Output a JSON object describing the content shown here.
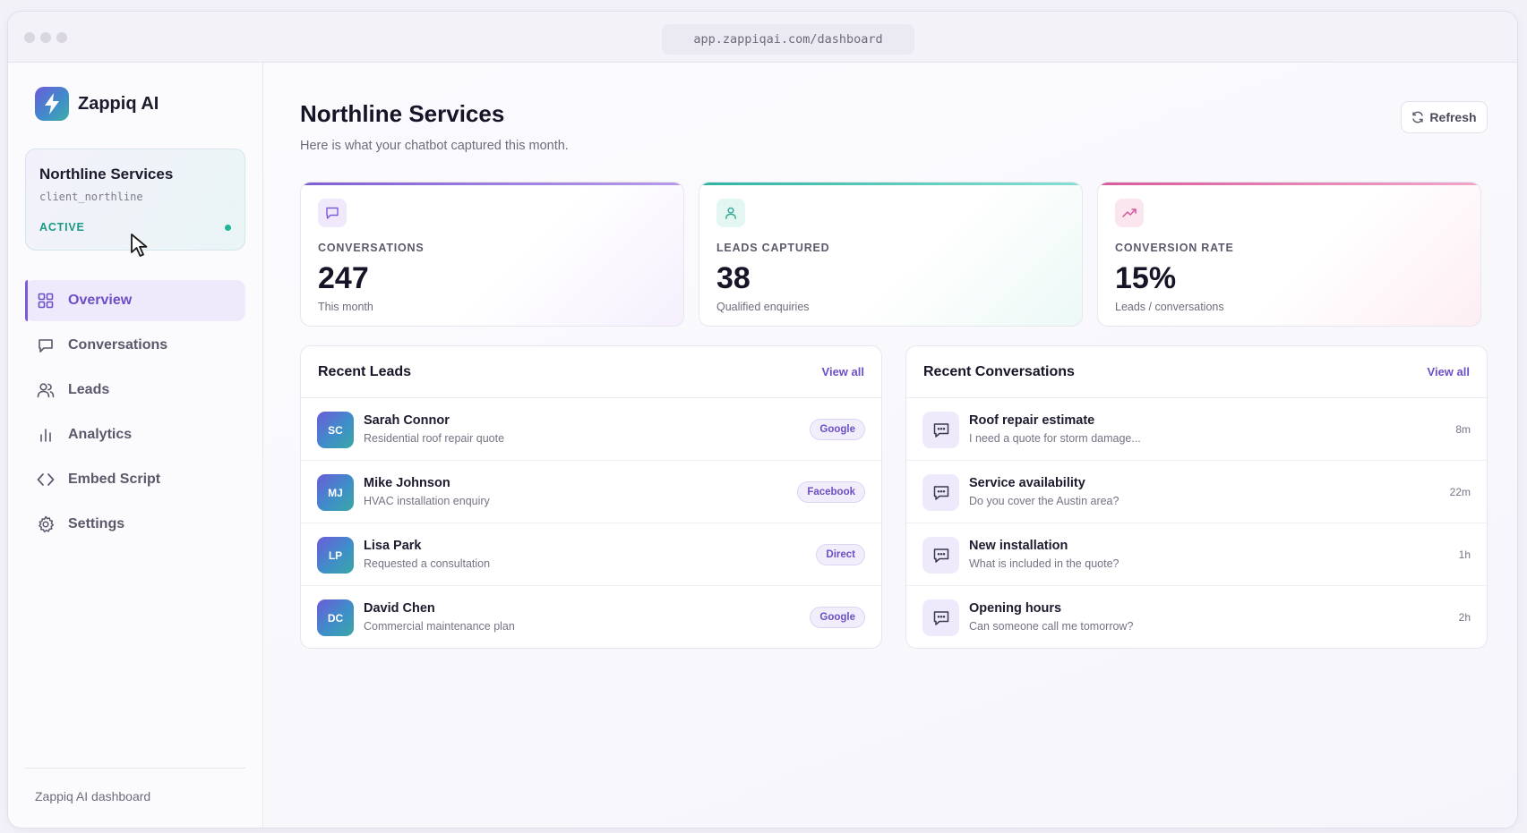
{
  "browser": {
    "url": "app.zappiqai.com/dashboard"
  },
  "sidebar": {
    "brand": "Zappiq AI",
    "client": {
      "name": "Northline Services",
      "id": "client_northline",
      "status": "ACTIVE"
    },
    "nav": [
      {
        "label": "Overview",
        "icon": "grid-icon",
        "active": true
      },
      {
        "label": "Conversations",
        "icon": "chat-bubble-icon",
        "active": false
      },
      {
        "label": "Leads",
        "icon": "users-icon",
        "active": false
      },
      {
        "label": "Analytics",
        "icon": "bar-chart-icon",
        "active": false
      },
      {
        "label": "Embed Script",
        "icon": "code-icon",
        "active": false
      },
      {
        "label": "Settings",
        "icon": "gear-icon",
        "active": false
      }
    ],
    "footer": "Zappiq AI dashboard"
  },
  "header": {
    "title": "Northline Services",
    "subtitle": "Here is what your chatbot captured this month.",
    "refresh_label": "Refresh"
  },
  "stats": [
    {
      "label": "CONVERSATIONS",
      "value": "247",
      "sub": "This month",
      "icon": "chat-bubble-icon",
      "accent": "#8b6ad9"
    },
    {
      "label": "LEADS CAPTURED",
      "value": "38",
      "sub": "Qualified enquiries",
      "icon": "user-icon",
      "accent": "#3cc2b0"
    },
    {
      "label": "CONVERSION RATE",
      "value": "15%",
      "sub": "Leads / conversations",
      "icon": "trending-up-icon",
      "accent": "#e06aa8"
    }
  ],
  "recent_leads": {
    "title": "Recent Leads",
    "link": "View all",
    "items": [
      {
        "initials": "SC",
        "name": "Sarah Connor",
        "desc": "Residential roof repair quote",
        "source": "Google"
      },
      {
        "initials": "MJ",
        "name": "Mike Johnson",
        "desc": "HVAC installation enquiry",
        "source": "Facebook"
      },
      {
        "initials": "LP",
        "name": "Lisa Park",
        "desc": "Requested a consultation",
        "source": "Direct"
      },
      {
        "initials": "DC",
        "name": "David Chen",
        "desc": "Commercial maintenance plan",
        "source": "Google"
      }
    ]
  },
  "recent_conversations": {
    "title": "Recent Conversations",
    "link": "View all",
    "items": [
      {
        "title": "Roof repair estimate",
        "preview": "I need a quote for storm damage...",
        "time": "8m"
      },
      {
        "title": "Service availability",
        "preview": "Do you cover the Austin area?",
        "time": "22m"
      },
      {
        "title": "New installation",
        "preview": "What is included in the quote?",
        "time": "1h"
      },
      {
        "title": "Opening hours",
        "preview": "Can someone call me tomorrow?",
        "time": "2h"
      }
    ]
  },
  "colors": {
    "accent": "#6c4fc7",
    "status_active": "#1b9a86"
  }
}
